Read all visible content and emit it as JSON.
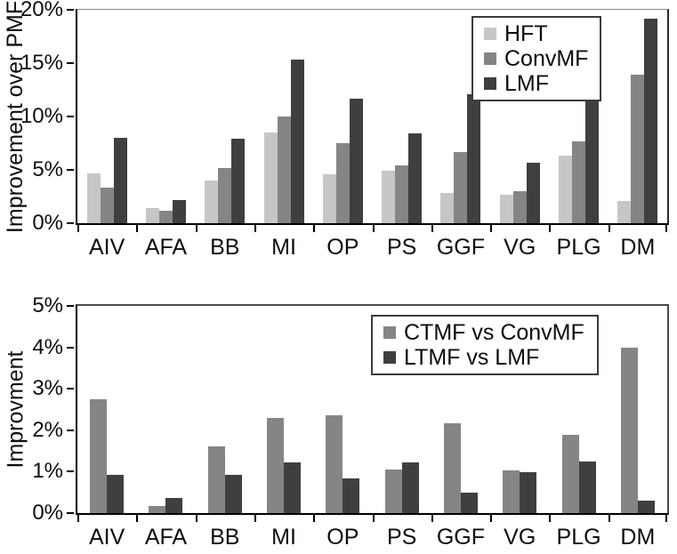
{
  "figure": {
    "description_colors": {
      "light_gray": "#c6c6c6",
      "medium_gray": "#858585",
      "dark_gray": "#3f3f3f",
      "axis": "#000000",
      "background": "#ffffff"
    }
  },
  "chart_data": [
    {
      "type": "bar",
      "title": "",
      "ylabel": "Improvement over PMF",
      "xlabel": "",
      "categories": [
        "AIV",
        "AFA",
        "BB",
        "MI",
        "OP",
        "PS",
        "GGF",
        "VG",
        "PLG",
        "DM"
      ],
      "series": [
        {
          "name": "HFT",
          "color": "#c6c6c6",
          "values": [
            4.7,
            1.4,
            4.0,
            8.5,
            4.6,
            4.9,
            2.8,
            2.7,
            6.3,
            2.1
          ]
        },
        {
          "name": "ConvMF",
          "color": "#858585",
          "values": [
            3.3,
            1.2,
            5.2,
            10.0,
            7.5,
            5.4,
            6.7,
            3.0,
            7.7,
            13.9
          ]
        },
        {
          "name": "LMF",
          "color": "#3f3f3f",
          "values": [
            8.0,
            2.2,
            7.9,
            15.3,
            11.7,
            8.4,
            12.1,
            5.7,
            12.2,
            19.2
          ]
        }
      ],
      "ylim": [
        0,
        20
      ],
      "ytick_values": [
        0,
        5,
        10,
        15,
        20
      ],
      "ytick_labels": [
        "0%",
        "5%",
        "10%",
        "15%",
        "20%"
      ],
      "legend_position": "top-right",
      "grid": false
    },
    {
      "type": "bar",
      "title": "",
      "ylabel": "Improvment",
      "xlabel": "",
      "categories": [
        "AIV",
        "AFA",
        "BB",
        "MI",
        "OP",
        "PS",
        "GGF",
        "VG",
        "PLG",
        "DM"
      ],
      "series": [
        {
          "name": "CTMF vs ConvMF",
          "color": "#858585",
          "values": [
            2.75,
            0.17,
            1.6,
            2.3,
            2.35,
            1.05,
            2.17,
            1.02,
            1.88,
            4.0
          ]
        },
        {
          "name": "LTMF vs LMF",
          "color": "#3f3f3f",
          "values": [
            0.92,
            0.37,
            0.93,
            1.22,
            0.84,
            1.22,
            0.5,
            0.98,
            1.25,
            0.3
          ]
        }
      ],
      "ylim": [
        0,
        5
      ],
      "ytick_values": [
        0,
        1,
        2,
        3,
        4,
        5
      ],
      "ytick_labels": [
        "0%",
        "1%",
        "2%",
        "3%",
        "4%",
        "5%"
      ],
      "legend_position": "top-right",
      "grid": false
    }
  ]
}
